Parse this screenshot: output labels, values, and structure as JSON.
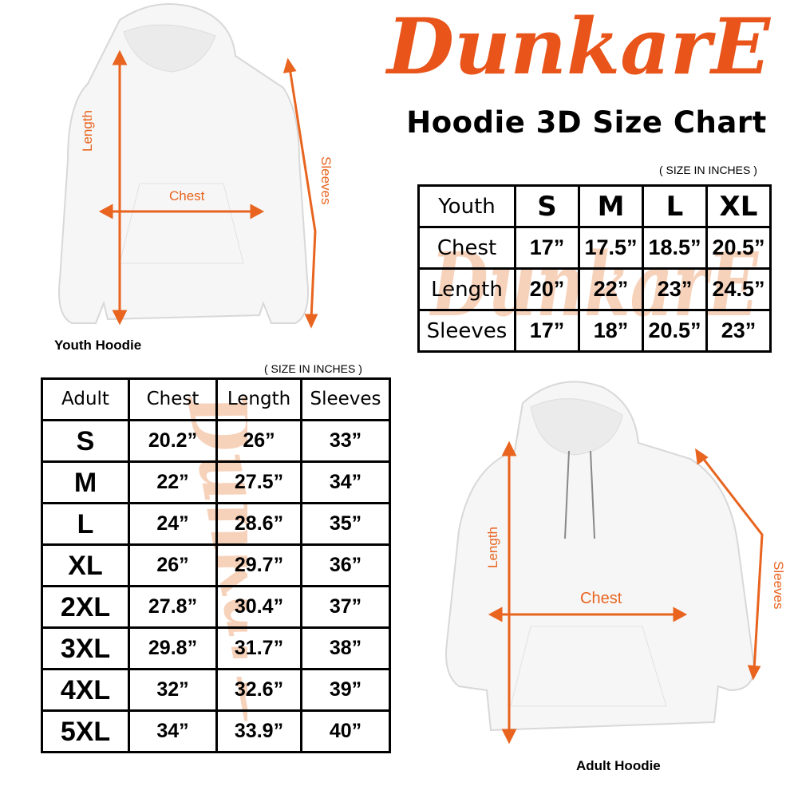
{
  "brand": {
    "logo_text": "DunkarE",
    "color": "#e8541a",
    "watermark_color": "#f7d2bb"
  },
  "title": "Hoodie 3D Size Chart",
  "youth": {
    "units": "( SIZE IN INCHES )",
    "image_label": "Youth Hoodie",
    "measure_labels": {
      "length": "Length",
      "chest": "Chest",
      "sleeves": "Sleeves"
    },
    "table": {
      "header": [
        "Youth",
        "S",
        "M",
        "L",
        "XL"
      ],
      "rows": [
        [
          "Chest",
          "17”",
          "17.5”",
          "18.5”",
          "20.5”"
        ],
        [
          "Length",
          "20”",
          "22”",
          "23”",
          "24.5”"
        ],
        [
          "Sleeves",
          "17”",
          "18”",
          "20.5”",
          "23”"
        ]
      ]
    }
  },
  "adult": {
    "units": "( SIZE IN INCHES )",
    "image_label": "Adult Hoodie",
    "measure_labels": {
      "length": "Length",
      "chest": "Chest",
      "sleeves": "Sleeves"
    },
    "table": {
      "header": [
        "Adult",
        "Chest",
        "Length",
        "Sleeves"
      ],
      "rows": [
        [
          "S",
          "20.2”",
          "26”",
          "33”"
        ],
        [
          "M",
          "22”",
          "27.5”",
          "34”"
        ],
        [
          "L",
          "24”",
          "28.6”",
          "35”"
        ],
        [
          "XL",
          "26”",
          "29.7”",
          "36”"
        ],
        [
          "2XL",
          "27.8”",
          "30.4”",
          "37”"
        ],
        [
          "3XL",
          "29.8”",
          "31.7”",
          "38”"
        ],
        [
          "4XL",
          "32”",
          "32.6”",
          "39”"
        ],
        [
          "5XL",
          "34”",
          "33.9”",
          "40”"
        ]
      ]
    }
  }
}
